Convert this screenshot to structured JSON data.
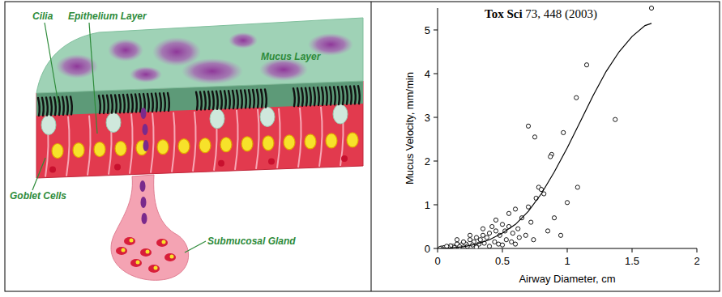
{
  "diagram": {
    "labels": [
      "Cilia",
      "Epithelium Layer",
      "Mucus Layer",
      "Goblet Cells",
      "Submucosal Gland"
    ]
  },
  "chart_data": {
    "type": "scatter",
    "annotations": [
      "Tox Sci",
      "73, 448 (2003)"
    ],
    "xlabel": "Airway Diameter, cm",
    "ylabel": "Mucus Velocity, mm/min",
    "xlim": [
      0,
      2
    ],
    "xticks": [
      0,
      0.5,
      1,
      1.5,
      2
    ],
    "ylim": [
      0,
      5.5
    ],
    "yticks": [
      0,
      1,
      2,
      3,
      4,
      5
    ],
    "grid": false,
    "series": [
      {
        "type": "scatter",
        "marker": "circle",
        "color": "#000000",
        "x": [
          0.7,
          0.75,
          0.88,
          0.87,
          0.97,
          1.0,
          1.07,
          1.08,
          1.15,
          1.37,
          1.65,
          0.78,
          0.8,
          0.82,
          0.76,
          0.7,
          0.72,
          0.65,
          0.6,
          0.55,
          0.5,
          0.45,
          0.9,
          0.95,
          0.85,
          0.62,
          0.58,
          0.52,
          0.48,
          0.42,
          0.4,
          0.38,
          0.35,
          0.33,
          0.3,
          0.28,
          0.25,
          0.22,
          0.2,
          0.18,
          0.15,
          0.12,
          0.1,
          0.08,
          0.05,
          0.03,
          0.02,
          0.07,
          0.13,
          0.17,
          0.23,
          0.27,
          0.32,
          0.36,
          0.44,
          0.47,
          0.53,
          0.57,
          0.63,
          0.68,
          0.74,
          0.4,
          0.3,
          0.5,
          0.6,
          0.45,
          0.55,
          0.35,
          0.25,
          0.15
        ],
        "values": [
          2.8,
          2.55,
          2.15,
          2.1,
          2.65,
          1.05,
          3.45,
          1.4,
          4.2,
          2.95,
          5.5,
          1.4,
          1.35,
          1.25,
          1.15,
          0.95,
          0.6,
          0.7,
          0.9,
          0.8,
          0.55,
          0.65,
          0.7,
          0.3,
          0.4,
          0.45,
          0.35,
          0.4,
          0.3,
          0.5,
          0.35,
          0.25,
          0.3,
          0.2,
          0.25,
          0.15,
          0.2,
          0.1,
          0.15,
          0.08,
          0.1,
          0.05,
          0.06,
          0.03,
          0.02,
          0.01,
          0.0,
          0.05,
          0.02,
          0.04,
          0.05,
          0.08,
          0.1,
          0.12,
          0.15,
          0.1,
          0.2,
          0.15,
          0.25,
          0.3,
          0.2,
          0.05,
          0.03,
          0.08,
          0.1,
          0.4,
          0.5,
          0.45,
          0.3,
          0.2
        ]
      },
      {
        "type": "line",
        "line_style": "solid",
        "color": "#000000",
        "x": [
          0,
          0.1,
          0.2,
          0.3,
          0.4,
          0.5,
          0.6,
          0.7,
          0.8,
          0.9,
          1.0,
          1.1,
          1.2,
          1.3,
          1.4,
          1.5,
          1.6,
          1.65
        ],
        "values": [
          0,
          0.01,
          0.04,
          0.1,
          0.2,
          0.35,
          0.55,
          0.85,
          1.25,
          1.75,
          2.3,
          2.9,
          3.5,
          4.05,
          4.5,
          4.85,
          5.1,
          5.15
        ]
      }
    ]
  }
}
